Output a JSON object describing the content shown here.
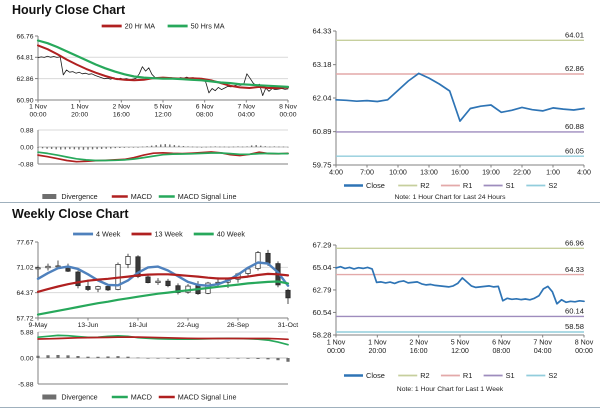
{
  "page": {
    "background": "#ffffff",
    "divider_color": "#9fb0bd"
  },
  "chart_data": [
    {
      "id": "hourly",
      "type": "line",
      "title": "Hourly Close Chart",
      "ylim": [
        60.9,
        66.76
      ],
      "yticks": [
        "66.76",
        "64.81",
        "62.86",
        "60.90"
      ],
      "xlabels": [
        [
          "1 Nov",
          "00:00"
        ],
        [
          "1 Nov",
          "20:00"
        ],
        [
          "2 Nov",
          "16:00"
        ],
        [
          "5 Nov",
          "12:00"
        ],
        [
          "6 Nov",
          "08:00"
        ],
        [
          "7 Nov",
          "04:00"
        ],
        [
          "8 Nov",
          "00:00"
        ]
      ],
      "legend": [
        {
          "label": "20 Hr MA",
          "color": "#b02020"
        },
        {
          "label": "50 Hrs MA",
          "color": "#27a85b"
        }
      ],
      "series": [
        {
          "name": "Close",
          "color": "#1a1a1a",
          "width": 0.8,
          "values": [
            64.78,
            64.85,
            64.8,
            64.9,
            64.82,
            64.88,
            64.8,
            64.85,
            63.2,
            63.65,
            63.45,
            63.5,
            63.35,
            63.45,
            63.3,
            63.35,
            63.25,
            63.3,
            63.15,
            63.05,
            62.95,
            62.85,
            62.9,
            62.8,
            62.95,
            62.75,
            62.9,
            62.8,
            62.85,
            62.75,
            62.8,
            62.9,
            63.3,
            63.95,
            63.55,
            63.85,
            63.25,
            62.95,
            62.9,
            62.95,
            62.85,
            62.9,
            62.95,
            62.9,
            62.85,
            62.95,
            62.9,
            63.0,
            62.9,
            62.95,
            62.85,
            62.9,
            62.8,
            62.55,
            61.55,
            61.95,
            61.75,
            62.05,
            61.85,
            62.0,
            62.15,
            62.1,
            62.2,
            62.3,
            62.25,
            62.35,
            63.3,
            62.9,
            62.45,
            62.2,
            62.35,
            61.3,
            62.0,
            61.7,
            61.95,
            61.85,
            61.9,
            61.95,
            61.88,
            61.92
          ]
        },
        {
          "name": "20 Hr MA",
          "color": "#b02020",
          "width": 2.0,
          "values": [
            65.9,
            65.55,
            65.1,
            64.6,
            64.15,
            63.75,
            63.4,
            63.1,
            62.85,
            62.75,
            62.7,
            62.75,
            62.9,
            62.95,
            62.9,
            62.85,
            62.9,
            62.85,
            62.7,
            62.45,
            62.2,
            62.05,
            62.0,
            62.1,
            62.0,
            62.0,
            62.05
          ]
        },
        {
          "name": "50 Hrs MA",
          "color": "#27a85b",
          "width": 2.2,
          "values": [
            66.35,
            66.1,
            65.75,
            65.35,
            64.95,
            64.55,
            64.15,
            63.8,
            63.5,
            63.25,
            63.05,
            62.95,
            62.9,
            62.85,
            62.85,
            62.8,
            62.75,
            62.7,
            62.6,
            62.5,
            62.45,
            62.35,
            62.3,
            62.25,
            62.2,
            62.15,
            62.1
          ]
        }
      ],
      "macd": {
        "ylim": [
          -0.88,
          0.88
        ],
        "yticks": [
          "0.88",
          "0.00",
          "-0.88"
        ],
        "divergence": {
          "color": "#6e6e6e",
          "values": [
            -0.05,
            -0.07,
            -0.09,
            -0.1,
            -0.12,
            -0.13,
            -0.12,
            -0.11,
            -0.12,
            -0.13,
            -0.14,
            -0.13,
            -0.12,
            -0.11,
            -0.1,
            -0.09,
            -0.08,
            -0.06,
            -0.05,
            -0.04,
            -0.03,
            -0.02,
            0.0,
            0.02,
            0.04,
            0.07,
            0.1,
            0.13,
            0.15,
            0.13,
            0.1,
            0.07,
            0.05,
            0.03,
            0.02,
            0.01,
            0.0,
            0.01,
            0.02,
            0.03,
            0.02,
            0.02,
            0.01,
            0.02,
            0.03,
            0.02,
            0.03,
            0.08,
            0.1,
            0.07,
            0.04,
            0.02,
            0.03,
            0.02,
            0.02,
            0.01
          ]
        },
        "macd": {
          "color": "#b02020",
          "values": [
            -0.42,
            -0.5,
            -0.6,
            -0.7,
            -0.76,
            -0.74,
            -0.71,
            -0.69,
            -0.67,
            -0.64,
            -0.55,
            -0.42,
            -0.32,
            -0.3,
            -0.33,
            -0.34,
            -0.32,
            -0.29,
            -0.26,
            -0.3,
            -0.4,
            -0.44,
            -0.38,
            -0.27,
            -0.34,
            -0.35,
            -0.33
          ]
        },
        "signal": {
          "color": "#27a85b",
          "values": [
            -0.27,
            -0.33,
            -0.42,
            -0.52,
            -0.61,
            -0.67,
            -0.7,
            -0.7,
            -0.69,
            -0.67,
            -0.62,
            -0.55,
            -0.47,
            -0.4,
            -0.37,
            -0.36,
            -0.35,
            -0.33,
            -0.31,
            -0.31,
            -0.34,
            -0.38,
            -0.38,
            -0.34,
            -0.33,
            -0.34,
            -0.34
          ]
        },
        "legend": [
          {
            "label": "Divergence",
            "color": "#6e6e6e",
            "type": "bar"
          },
          {
            "label": "MACD",
            "color": "#b02020"
          },
          {
            "label": "MACD Signal Line",
            "color": "#27a85b"
          }
        ]
      }
    },
    {
      "id": "hourly_sr",
      "type": "line",
      "ylim": [
        59.75,
        64.33
      ],
      "yticks": [
        "64.33",
        "63.18",
        "62.04",
        "60.89",
        "59.75"
      ],
      "xlabels": [
        "4:00",
        "7:00",
        "10:00",
        "13:00",
        "16:00",
        "19:00",
        "22:00",
        "1:00",
        "4:00"
      ],
      "hlines": [
        {
          "name": "R2",
          "text": "64.01",
          "value": 64.01,
          "color": "#c6cf9d"
        },
        {
          "name": "R1",
          "text": "62.86",
          "value": 62.86,
          "color": "#e3a9a9"
        },
        {
          "name": "S1",
          "text": "60.88",
          "value": 60.88,
          "color": "#9e8cbd"
        },
        {
          "name": "S2",
          "text": "60.05",
          "value": 60.05,
          "color": "#92cddc"
        }
      ],
      "series": [
        {
          "name": "Close",
          "color": "#2e74b5",
          "width": 1.7,
          "values": [
            61.98,
            61.96,
            61.93,
            61.95,
            61.92,
            61.98,
            62.3,
            62.62,
            62.88,
            62.72,
            62.52,
            62.28,
            61.25,
            61.68,
            61.76,
            61.8,
            61.55,
            61.62,
            61.72,
            61.64,
            61.6,
            61.7,
            61.66,
            61.63,
            61.68
          ]
        }
      ],
      "legend": [
        {
          "label": "Close",
          "color": "#2e74b5",
          "lw": 2.6
        },
        {
          "label": "R2",
          "color": "#c6cf9d"
        },
        {
          "label": "R1",
          "color": "#e3a9a9"
        },
        {
          "label": "S1",
          "color": "#9e8cbd"
        },
        {
          "label": "S2",
          "color": "#92cddc"
        }
      ],
      "note": "Note: 1 Hour Chart for Last 24 Hours"
    },
    {
      "id": "weekly",
      "type": "candlestick",
      "title": "Weekly Close Chart",
      "ylim": [
        57.72,
        77.67
      ],
      "yticks": [
        "77.67",
        "71.02",
        "64.37",
        "57.72"
      ],
      "xlabels": [
        "9-May",
        "13-Jun",
        "18-Jul",
        "22-Aug",
        "26-Sep",
        "31-Oct"
      ],
      "legend": [
        {
          "label": "4 Week",
          "color": "#4f81bd",
          "lw": 2.8
        },
        {
          "label": "13 Week",
          "color": "#b02020",
          "lw": 2.8
        },
        {
          "label": "40 Week",
          "color": "#27a85b",
          "lw": 2.8
        }
      ],
      "candles": [
        [
          70.6,
          71.5,
          68.0,
          70.9
        ],
        [
          70.9,
          72.0,
          70.2,
          71.3
        ],
        [
          71.3,
          72.8,
          70.8,
          71.4
        ],
        [
          71.2,
          72.0,
          69.8,
          70.0
        ],
        [
          69.8,
          70.2,
          65.5,
          66.2
        ],
        [
          66.0,
          67.8,
          64.8,
          65.2
        ],
        [
          65.3,
          66.2,
          64.5,
          66.0
        ],
        [
          66.0,
          66.5,
          64.8,
          65.1
        ],
        [
          65.2,
          72.3,
          65.0,
          71.8
        ],
        [
          71.8,
          74.6,
          70.8,
          73.9
        ],
        [
          73.8,
          74.2,
          68.2,
          68.6
        ],
        [
          68.5,
          69.2,
          66.8,
          67.0
        ],
        [
          67.0,
          68.2,
          66.4,
          67.4
        ],
        [
          67.4,
          68.0,
          65.8,
          66.2
        ],
        [
          66.2,
          66.8,
          63.9,
          64.4
        ],
        [
          64.5,
          66.6,
          64.1,
          66.1
        ],
        [
          66.2,
          67.4,
          63.8,
          64.1
        ],
        [
          64.2,
          67.2,
          64.0,
          66.9
        ],
        [
          66.9,
          68.4,
          66.1,
          67.1
        ],
        [
          67.1,
          68.2,
          65.6,
          67.9
        ],
        [
          67.9,
          69.6,
          67.0,
          69.3
        ],
        [
          69.4,
          71.2,
          68.8,
          70.6
        ],
        [
          70.7,
          75.3,
          70.2,
          74.9
        ],
        [
          74.7,
          75.6,
          71.4,
          72.1
        ],
        [
          72.0,
          72.6,
          65.8,
          66.4
        ],
        [
          65.0,
          65.4,
          61.4,
          63.0
        ]
      ],
      "series": [
        {
          "name": "4 Week",
          "color": "#4f81bd",
          "width": 2.4,
          "values": [
            68.0,
            69.5,
            70.8,
            71.2,
            70.6,
            69.2,
            67.6,
            66.4,
            66.3,
            67.6,
            69.6,
            71.0,
            71.2,
            70.2,
            68.7,
            67.2,
            66.4,
            66.2,
            66.6,
            67.6,
            69.1,
            70.9,
            72.3,
            72.0,
            69.7,
            66.2
          ]
        },
        {
          "name": "13 Week",
          "color": "#b02020",
          "width": 2.2,
          "values": [
            64.6,
            65.3,
            66.0,
            66.6,
            67.1,
            67.5,
            67.8,
            68.0,
            68.3,
            68.6,
            68.9,
            69.1,
            69.2,
            69.2,
            69.0,
            68.8,
            68.6,
            68.3,
            68.1,
            68.1,
            68.3,
            68.6,
            69.0,
            69.3,
            69.2,
            68.9
          ]
        },
        {
          "name": "40 Week",
          "color": "#27a85b",
          "width": 2.2,
          "values": [
            58.6,
            59.1,
            59.6,
            60.1,
            60.6,
            61.1,
            61.6,
            62.0,
            62.5,
            62.9,
            63.3,
            63.7,
            64.1,
            64.4,
            64.7,
            65.0,
            65.3,
            65.6,
            65.9,
            66.2,
            66.5,
            66.8,
            67.0,
            67.2,
            67.3,
            66.8
          ]
        }
      ],
      "macd": {
        "ylim": [
          -5.88,
          5.88
        ],
        "yticks": [
          "5.88",
          "0.00",
          "-5.88"
        ],
        "divergence": {
          "color": "#6e6e6e",
          "values": [
            0.5,
            0.62,
            0.68,
            0.6,
            0.45,
            0.3,
            0.28,
            0.35,
            0.42,
            0.3,
            0.1,
            0.0,
            -0.08,
            -0.12,
            -0.18,
            -0.2,
            -0.18,
            -0.12,
            -0.08,
            -0.06,
            -0.1,
            -0.16,
            -0.22,
            -0.3,
            -0.5,
            -0.85
          ]
        },
        "macd": {
          "color": "#27a85b",
          "values": [
            4.7,
            4.9,
            5.1,
            5.05,
            4.85,
            4.65,
            4.7,
            4.9,
            5.0,
            4.9,
            4.6,
            4.45,
            4.35,
            4.3,
            4.25,
            4.25,
            4.3,
            4.35,
            4.4,
            4.45,
            4.4,
            4.35,
            4.25,
            4.05,
            3.6,
            3.0
          ]
        },
        "signal": {
          "color": "#b02020",
          "values": [
            4.3,
            4.35,
            4.42,
            4.5,
            4.57,
            4.62,
            4.64,
            4.66,
            4.7,
            4.72,
            4.72,
            4.68,
            4.62,
            4.56,
            4.5,
            4.46,
            4.42,
            4.4,
            4.4,
            4.4,
            4.41,
            4.42,
            4.42,
            4.4,
            4.35,
            4.22
          ]
        },
        "legend": [
          {
            "label": "Divergence",
            "color": "#6e6e6e",
            "type": "bar"
          },
          {
            "label": "MACD",
            "color": "#27a85b"
          },
          {
            "label": "MACD Signal Line",
            "color": "#b02020"
          }
        ]
      }
    },
    {
      "id": "weekly_sr",
      "type": "line",
      "ylim": [
        58.28,
        67.29
      ],
      "yticks": [
        "67.29",
        "65.04",
        "62.79",
        "60.54",
        "58.28"
      ],
      "xlabels": [
        [
          "1 Nov",
          "00:00"
        ],
        [
          "1 Nov",
          "20:00"
        ],
        [
          "2 Nov",
          "16:00"
        ],
        [
          "5 Nov",
          "12:00"
        ],
        [
          "6 Nov",
          "08:00"
        ],
        [
          "7 Nov",
          "04:00"
        ],
        [
          "8 Nov",
          "00:00"
        ]
      ],
      "hlines": [
        {
          "name": "R2",
          "text": "66.96",
          "value": 66.96,
          "color": "#c6cf9d"
        },
        {
          "name": "R1",
          "text": "64.33",
          "value": 64.33,
          "color": "#e3a9a9"
        },
        {
          "name": "S1",
          "text": "60.14",
          "value": 60.14,
          "color": "#9e8cbd"
        },
        {
          "name": "S2",
          "text": "58.58",
          "value": 58.58,
          "color": "#92cddc"
        }
      ],
      "series": [
        {
          "name": "Close",
          "color": "#2e74b5",
          "width": 1.7,
          "values": [
            65.0,
            65.12,
            64.95,
            65.05,
            64.9,
            65.02,
            64.95,
            65.05,
            64.9,
            63.55,
            63.6,
            63.5,
            63.58,
            63.45,
            63.62,
            63.7,
            63.5,
            63.55,
            63.6,
            63.4,
            63.3,
            63.35,
            63.25,
            63.2,
            63.15,
            63.1,
            63.2,
            63.45,
            64.0,
            63.6,
            63.2,
            63.05,
            63.1,
            63.15,
            63.2,
            63.1,
            63.15,
            61.7,
            61.95,
            61.85,
            61.9,
            61.82,
            61.88,
            61.8,
            61.95,
            62.2,
            62.9,
            63.15,
            62.6,
            61.4,
            61.8,
            61.55,
            61.65,
            61.6,
            61.7,
            61.65
          ]
        }
      ],
      "legend": [
        {
          "label": "Close",
          "color": "#2e74b5",
          "lw": 2.6
        },
        {
          "label": "R2",
          "color": "#c6cf9d"
        },
        {
          "label": "R1",
          "color": "#e3a9a9"
        },
        {
          "label": "S1",
          "color": "#9e8cbd"
        },
        {
          "label": "S2",
          "color": "#92cddc"
        }
      ],
      "note": "Note: 1 Hour Chart for Last 1 Week"
    }
  ]
}
